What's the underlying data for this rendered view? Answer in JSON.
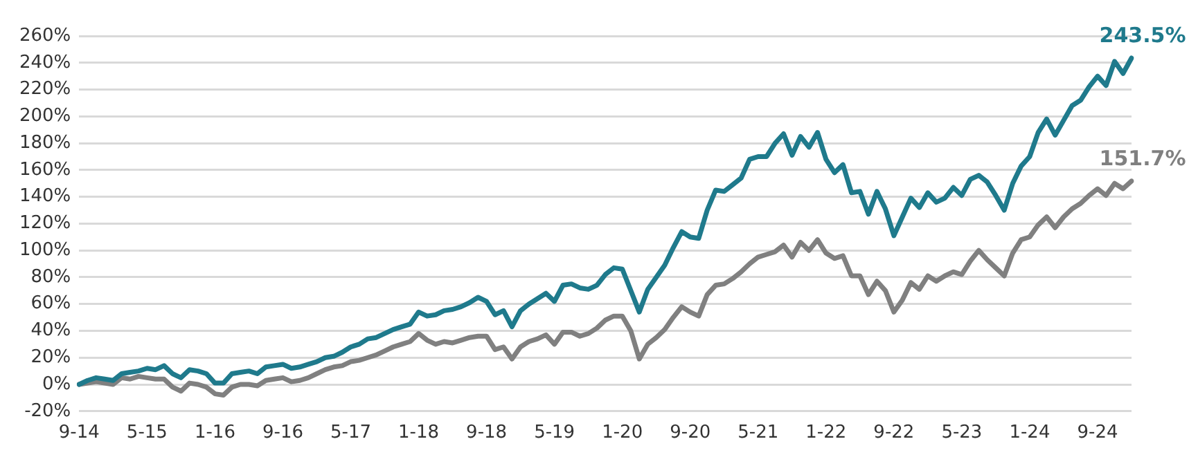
{
  "chart_data": {
    "type": "line",
    "categories": [
      "9-14",
      null,
      null,
      null,
      null,
      null,
      null,
      null,
      "5-15",
      null,
      null,
      null,
      null,
      null,
      null,
      null,
      "1-16",
      null,
      null,
      null,
      null,
      null,
      null,
      null,
      "9-16",
      null,
      null,
      null,
      null,
      null,
      null,
      null,
      "5-17",
      null,
      null,
      null,
      null,
      null,
      null,
      null,
      "1-18",
      null,
      null,
      null,
      null,
      null,
      null,
      null,
      "9-18",
      null,
      null,
      null,
      null,
      null,
      null,
      null,
      "5-19",
      null,
      null,
      null,
      null,
      null,
      null,
      null,
      "1-20",
      null,
      null,
      null,
      null,
      null,
      null,
      null,
      "9-20",
      null,
      null,
      null,
      null,
      null,
      null,
      null,
      "5-21",
      null,
      null,
      null,
      null,
      null,
      null,
      null,
      "1-22",
      null,
      null,
      null,
      null,
      null,
      null,
      null,
      "9-22",
      null,
      null,
      null,
      null,
      null,
      null,
      null,
      "5-23",
      null,
      null,
      null,
      null,
      null,
      null,
      null,
      "1-24",
      null,
      null,
      null,
      null,
      null,
      null,
      null,
      "9-24",
      null,
      null,
      null,
      null
    ],
    "series": [
      {
        "color": "#1f7a8c",
        "values": [
          0,
          3,
          5,
          4,
          3,
          8,
          9,
          10,
          12,
          11,
          14,
          8,
          5,
          11,
          10,
          8,
          1,
          1,
          8,
          9,
          10,
          8,
          13,
          14,
          15,
          12,
          13,
          15,
          17,
          20,
          21,
          24,
          28,
          30,
          34,
          35,
          38,
          41,
          43,
          45,
          54,
          51,
          52,
          55,
          56,
          58,
          61,
          65,
          62,
          52,
          55,
          43,
          55,
          60,
          64,
          68,
          62,
          74,
          75,
          72,
          71,
          74,
          82,
          87,
          86,
          70,
          54,
          71,
          80,
          89,
          102,
          114,
          110,
          109,
          130,
          145,
          144,
          149,
          154,
          168,
          170,
          170,
          180,
          187,
          171,
          185,
          177,
          188,
          168,
          158,
          164,
          143,
          144,
          127,
          144,
          131,
          111,
          125,
          139,
          132,
          143,
          136,
          139,
          147,
          141,
          153,
          156,
          151,
          141,
          130,
          150,
          163,
          170,
          188,
          198,
          186,
          197,
          208,
          212,
          222,
          230,
          223,
          241,
          232,
          243.5
        ]
      },
      {
        "color": "#808080",
        "values": [
          0,
          1,
          2,
          1,
          0,
          5,
          4,
          6,
          5,
          4,
          4,
          -2,
          -5,
          1,
          0,
          -2,
          -7,
          -8,
          -2,
          0,
          0,
          -1,
          3,
          4,
          5,
          2,
          3,
          5,
          8,
          11,
          13,
          14,
          17,
          18,
          20,
          22,
          25,
          28,
          30,
          32,
          38,
          33,
          30,
          32,
          31,
          33,
          35,
          36,
          36,
          26,
          28,
          19,
          28,
          32,
          34,
          37,
          30,
          39,
          39,
          36,
          38,
          42,
          48,
          51,
          51,
          40,
          19,
          30,
          35,
          41,
          50,
          58,
          54,
          51,
          67,
          74,
          75,
          79,
          84,
          90,
          95,
          97,
          99,
          104,
          95,
          106,
          100,
          108,
          98,
          94,
          96,
          81,
          81,
          67,
          77,
          70,
          54,
          63,
          76,
          71,
          81,
          77,
          81,
          84,
          82,
          92,
          100,
          93,
          87,
          81,
          98,
          108,
          110,
          119,
          125,
          117,
          125,
          131,
          135,
          141,
          146,
          141,
          150,
          146,
          151.7
        ]
      }
    ],
    "annotations": [
      "243.5%",
      "151.7%"
    ],
    "ylim": [
      -20,
      260
    ],
    "yticks": [
      {
        "value": -20,
        "label": "-20%"
      },
      {
        "value": 0,
        "label": "0%"
      },
      {
        "value": 20,
        "label": "20%"
      },
      {
        "value": 40,
        "label": "40%"
      },
      {
        "value": 60,
        "label": "60%"
      },
      {
        "value": 80,
        "label": "80%"
      },
      {
        "value": 100,
        "label": "100%"
      },
      {
        "value": 120,
        "label": "120%"
      },
      {
        "value": 140,
        "label": "140%"
      },
      {
        "value": 160,
        "label": "160%"
      },
      {
        "value": 180,
        "label": "180%"
      },
      {
        "value": 200,
        "label": "200%"
      },
      {
        "value": 220,
        "label": "220%"
      },
      {
        "value": 240,
        "label": "240%"
      },
      {
        "value": 260,
        "label": "260%"
      }
    ],
    "grid": "y",
    "legend": false,
    "marker": "none",
    "line_style": "solid"
  }
}
